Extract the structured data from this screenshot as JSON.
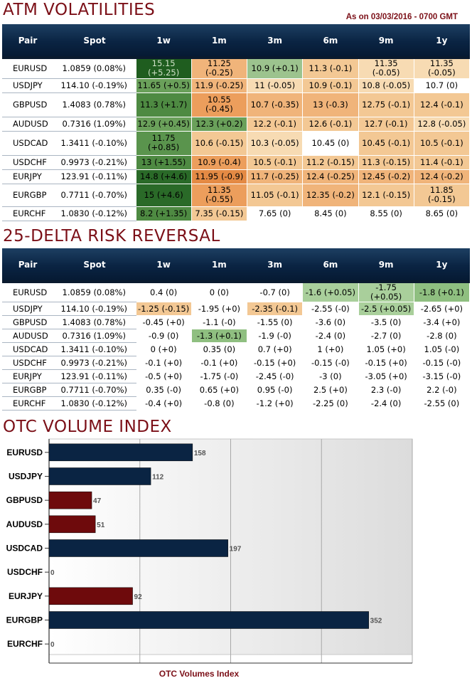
{
  "atm": {
    "title": "ATM VOLATILITIES",
    "as_of": "As on 03/03/2016 - 0700 GMT",
    "headers": [
      "Pair",
      "Spot",
      "1w",
      "1m",
      "3m",
      "6m",
      "9m",
      "1y"
    ],
    "rows": [
      {
        "pair": "EURUSD",
        "spot": "1.0859 (0.08%)",
        "cells": [
          [
            "15.15 (+5.25)",
            "#1f5d1f",
            "#cfe0c7"
          ],
          [
            "11.25 (-0.25)",
            "#f0b47a",
            "#000"
          ],
          [
            "10.9 (+0.1)",
            "#9cc38e",
            "#000"
          ],
          [
            "11.3 (-0.1)",
            "#f3c894",
            "#000"
          ],
          [
            "11.35 (-0.05)",
            "#f7dbb3",
            "#000"
          ],
          [
            "11.35 (-0.05)",
            "#f7dbb3",
            "#000"
          ]
        ]
      },
      {
        "pair": "USDJPY",
        "spot": "114.10 (-0.19%)",
        "cells": [
          [
            "11.65 (+0.5)",
            "#6aa05a",
            "#000"
          ],
          [
            "11.9 (-0.25)",
            "#f0b47a",
            "#000"
          ],
          [
            "11 (-0.05)",
            "#f7dbb3",
            "#000"
          ],
          [
            "10.9 (-0.1)",
            "#f3c894",
            "#000"
          ],
          [
            "10.8 (-0.05)",
            "#f7dbb3",
            "#000"
          ],
          [
            "10.7 (0)",
            "#ffffff",
            "#000"
          ]
        ]
      },
      {
        "pair": "GBPUSD",
        "spot": "1.4083 (0.78%)",
        "cells": [
          [
            "11.3 (+1.7)",
            "#4e8a42",
            "#000"
          ],
          [
            "10.55 (-0.45)",
            "#ec9e5c",
            "#000"
          ],
          [
            "10.7 (-0.35)",
            "#f0b47a",
            "#000"
          ],
          [
            "13 (-0.3)",
            "#f0b47a",
            "#000"
          ],
          [
            "12.75 (-0.1)",
            "#f3c894",
            "#000"
          ],
          [
            "12.4 (-0.1)",
            "#f3c894",
            "#000"
          ]
        ]
      },
      {
        "pair": "AUDUSD",
        "spot": "0.7316 (1.09%)",
        "cells": [
          [
            "12.9 (+0.45)",
            "#6aa05a",
            "#000"
          ],
          [
            "12.3 (+0.2)",
            "#6aa05a",
            "#000"
          ],
          [
            "12.2 (-0.1)",
            "#f3c894",
            "#000"
          ],
          [
            "12.6 (-0.1)",
            "#f3c894",
            "#000"
          ],
          [
            "12.7 (-0.1)",
            "#f3c894",
            "#000"
          ],
          [
            "12.8 (-0.05)",
            "#f7dbb3",
            "#000"
          ]
        ]
      },
      {
        "pair": "USDCAD",
        "spot": "1.3411 (-0.10%)",
        "cells": [
          [
            "11.75 (+0.85)",
            "#5a944d",
            "#000"
          ],
          [
            "10.6 (-0.15)",
            "#f3c894",
            "#000"
          ],
          [
            "10.3 (-0.05)",
            "#f7dbb3",
            "#000"
          ],
          [
            "10.45 (0)",
            "#ffffff",
            "#000"
          ],
          [
            "10.45 (-0.1)",
            "#f3c894",
            "#000"
          ],
          [
            "10.5 (-0.1)",
            "#f3c894",
            "#000"
          ]
        ]
      },
      {
        "pair": "USDCHF",
        "spot": "0.9973 (-0.21%)",
        "cells": [
          [
            "13 (+1.55)",
            "#4e8a42",
            "#000"
          ],
          [
            "10.9 (-0.4)",
            "#ec9e5c",
            "#000"
          ],
          [
            "10.5 (-0.1)",
            "#f3c894",
            "#000"
          ],
          [
            "11.2 (-0.15)",
            "#f3c894",
            "#000"
          ],
          [
            "11.3 (-0.15)",
            "#f3c894",
            "#000"
          ],
          [
            "11.4 (-0.1)",
            "#f3c894",
            "#000"
          ]
        ]
      },
      {
        "pair": "EURJPY",
        "spot": "123.91 (-0.11%)",
        "cells": [
          [
            "14.8 (+4.6)",
            "#2a6a28",
            "#000"
          ],
          [
            "11.95 (-0.9)",
            "#e48a44",
            "#000"
          ],
          [
            "11.7 (-0.25)",
            "#f0b47a",
            "#000"
          ],
          [
            "12.4 (-0.25)",
            "#f0b47a",
            "#000"
          ],
          [
            "12.45 (-0.2)",
            "#f0b47a",
            "#000"
          ],
          [
            "12.4 (-0.2)",
            "#f0b47a",
            "#000"
          ]
        ]
      },
      {
        "pair": "EURGBP",
        "spot": "0.7711 (-0.70%)",
        "cells": [
          [
            "15 (+4.6)",
            "#2a6a28",
            "#000"
          ],
          [
            "11.35 (-0.55)",
            "#ec9e5c",
            "#000"
          ],
          [
            "11.05 (-0.1)",
            "#f3c894",
            "#000"
          ],
          [
            "12.35 (-0.2)",
            "#f0b47a",
            "#000"
          ],
          [
            "12.1 (-0.15)",
            "#f3c894",
            "#000"
          ],
          [
            "11.85 (-0.15)",
            "#f3c894",
            "#000"
          ]
        ]
      },
      {
        "pair": "EURCHF",
        "spot": "1.0830 (-0.12%)",
        "cells": [
          [
            "8.2 (+1.35)",
            "#4e8a42",
            "#000"
          ],
          [
            "7.35 (-0.15)",
            "#f3c894",
            "#000"
          ],
          [
            "7.65 (0)",
            "#ffffff",
            "#000"
          ],
          [
            "8.45 (0)",
            "#ffffff",
            "#000"
          ],
          [
            "8.55 (0)",
            "#ffffff",
            "#000"
          ],
          [
            "8.65 (0)",
            "#ffffff",
            "#000"
          ]
        ]
      }
    ]
  },
  "rr": {
    "title": "25-DELTA RISK REVERSAL",
    "headers": [
      "Pair",
      "Spot",
      "1w",
      "1m",
      "3m",
      "6m",
      "9m",
      "1y"
    ],
    "rows": [
      {
        "pair": "EURUSD",
        "spot": "1.0859 (0.08%)",
        "cells": [
          [
            "0.4 (0)",
            "#ffffff"
          ],
          [
            "0 (0)",
            "#ffffff"
          ],
          [
            "-0.7 (0)",
            "#ffffff"
          ],
          [
            "-1.6 (+0.05)",
            "#a9cf9b"
          ],
          [
            "-1.75 (+0.05)",
            "#a9cf9b"
          ],
          [
            "-1.8 (+0.1)",
            "#8fbf80"
          ]
        ]
      },
      {
        "pair": "USDJPY",
        "spot": "114.10 (-0.19%)",
        "cells": [
          [
            "-1.25 (-0.15)",
            "#f3c894"
          ],
          [
            "-1.95 (+0)",
            "#ffffff"
          ],
          [
            "-2.35 (-0.1)",
            "#f3c894"
          ],
          [
            "-2.55 (-0)",
            "#ffffff"
          ],
          [
            "-2.5 (+0.05)",
            "#a9cf9b"
          ],
          [
            "-2.65 (+0)",
            "#ffffff"
          ]
        ]
      },
      {
        "pair": "GBPUSD",
        "spot": "1.4083 (0.78%)",
        "cells": [
          [
            "-0.45 (+0)",
            "#ffffff"
          ],
          [
            "-1.1 (-0)",
            "#ffffff"
          ],
          [
            "-1.55 (0)",
            "#ffffff"
          ],
          [
            "-3.6 (0)",
            "#ffffff"
          ],
          [
            "-3.5 (0)",
            "#ffffff"
          ],
          [
            "-3.4 (+0)",
            "#ffffff"
          ]
        ]
      },
      {
        "pair": "AUDUSD",
        "spot": "0.7316 (1.09%)",
        "cells": [
          [
            "-0.9 (0)",
            "#ffffff"
          ],
          [
            "-1.3 (+0.1)",
            "#8fbf80"
          ],
          [
            "-1.9 (-0)",
            "#ffffff"
          ],
          [
            "-2.4 (0)",
            "#ffffff"
          ],
          [
            "-2.7 (0)",
            "#ffffff"
          ],
          [
            "-2.8 (0)",
            "#ffffff"
          ]
        ]
      },
      {
        "pair": "USDCAD",
        "spot": "1.3411 (-0.10%)",
        "cells": [
          [
            "0 (+0)",
            "#ffffff"
          ],
          [
            "0.35 (0)",
            "#ffffff"
          ],
          [
            "0.7 (+0)",
            "#ffffff"
          ],
          [
            "1 (+0)",
            "#ffffff"
          ],
          [
            "1.05 (+0)",
            "#ffffff"
          ],
          [
            "1.05 (-0)",
            "#ffffff"
          ]
        ]
      },
      {
        "pair": "USDCHF",
        "spot": "0.9973 (-0.21%)",
        "cells": [
          [
            "-0.1 (+0)",
            "#ffffff"
          ],
          [
            "-0.1 (+0)",
            "#ffffff"
          ],
          [
            "-0.15 (+0)",
            "#ffffff"
          ],
          [
            "-0.15 (-0)",
            "#ffffff"
          ],
          [
            "-0.15 (+0)",
            "#ffffff"
          ],
          [
            "-0.15 (-0)",
            "#ffffff"
          ]
        ]
      },
      {
        "pair": "EURJPY",
        "spot": "123.91 (-0.11%)",
        "cells": [
          [
            "-0.5 (+0)",
            "#ffffff"
          ],
          [
            "-1.75 (-0)",
            "#ffffff"
          ],
          [
            "-2.45 (-0)",
            "#ffffff"
          ],
          [
            "-3 (0)",
            "#ffffff"
          ],
          [
            "-3.05 (+0)",
            "#ffffff"
          ],
          [
            "-3.15 (-0)",
            "#ffffff"
          ]
        ]
      },
      {
        "pair": "EURGBP",
        "spot": "0.7711 (-0.70%)",
        "cells": [
          [
            "0.35 (-0)",
            "#ffffff"
          ],
          [
            "0.65 (+0)",
            "#ffffff"
          ],
          [
            "0.95 (-0)",
            "#ffffff"
          ],
          [
            "2.5 (+0)",
            "#ffffff"
          ],
          [
            "2.3 (-0)",
            "#ffffff"
          ],
          [
            "2.2 (-0)",
            "#ffffff"
          ]
        ]
      },
      {
        "pair": "EURCHF",
        "spot": "1.0830 (-0.12%)",
        "cells": [
          [
            "-0.4 (+0)",
            "#ffffff"
          ],
          [
            "-0.8 (0)",
            "#ffffff"
          ],
          [
            "-1.2 (+0)",
            "#ffffff"
          ],
          [
            "-2.25 (0)",
            "#ffffff"
          ],
          [
            "-2.4 (0)",
            "#ffffff"
          ],
          [
            "-2.55 (0)",
            "#ffffff"
          ]
        ]
      }
    ]
  },
  "otc": {
    "title": "OTC VOLUME INDEX",
    "axis_title": "OTC Volumes Index"
  },
  "chart_data": {
    "type": "bar",
    "orientation": "horizontal",
    "xlabel": "OTC Volumes Index",
    "categories": [
      "EURUSD",
      "USDJPY",
      "GBPUSD",
      "AUDUSD",
      "USDCAD",
      "USDCHF",
      "EURJPY",
      "EURGBP",
      "EURCHF"
    ],
    "values": [
      158,
      112,
      47,
      51,
      197,
      0,
      92,
      352,
      0
    ],
    "bar_colors": [
      "#0a2443",
      "#0a2443",
      "#6e0a0c",
      "#6e0a0c",
      "#0a2443",
      "#0a2443",
      "#6e0a0c",
      "#0a2443",
      "#0a2443"
    ],
    "xlim": [
      0,
      400
    ],
    "grid": true,
    "data_labels": true
  },
  "colors": {
    "title": "#7b0f17",
    "header_bg": "#0a2443",
    "bar_blue": "#0a2443",
    "bar_red": "#6e0a0c"
  }
}
